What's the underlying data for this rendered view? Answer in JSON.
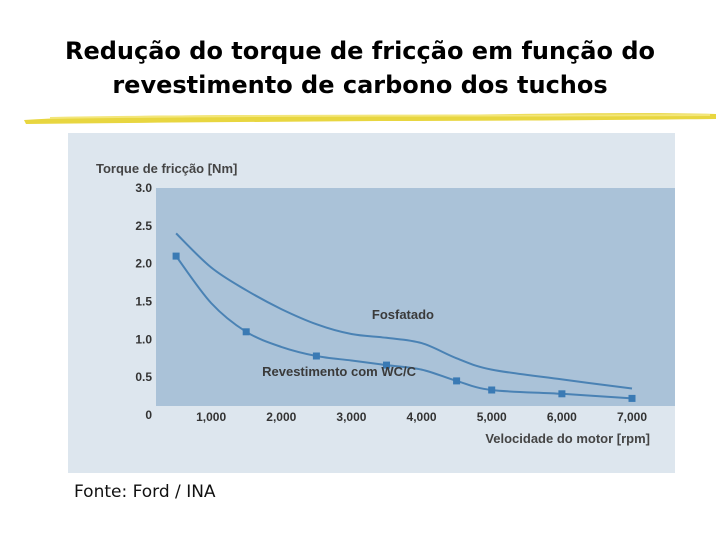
{
  "slide": {
    "title_line1": "Redução do torque de fricção em função do",
    "title_line2": "revestimento de carbono dos tuchos",
    "source": "Fonte: Ford / INA"
  },
  "colors": {
    "accent_underline": "#e8d640",
    "panel_background": "#dde6ee",
    "plot_area": "#aac2d8",
    "series_line": "#4a82b4",
    "marker": "#3a7ab4"
  },
  "chart_data": {
    "type": "line",
    "ylabel": "Torque de fricção [Nm]",
    "xlabel": "Velocidade do motor [rpm]",
    "xlim": [
      0,
      7000
    ],
    "ylim": [
      0,
      3.0
    ],
    "x_ticks": [
      1000,
      2000,
      3000,
      4000,
      5000,
      6000,
      7000
    ],
    "x_tick_labels": [
      "1,000",
      "2,000",
      "3,000",
      "4,000",
      "5,000",
      "6,000",
      "7,000"
    ],
    "y_ticks": [
      0,
      0.5,
      1.0,
      1.5,
      2.0,
      2.5,
      3.0
    ],
    "y_tick_labels": [
      "0",
      "0.5",
      "1.0",
      "1.5",
      "2.0",
      "2.5",
      "3.0"
    ],
    "grid": false,
    "series": [
      {
        "name": "Fosfatado",
        "markers": false,
        "x": [
          500,
          1000,
          1500,
          2000,
          2500,
          3000,
          3500,
          4000,
          4500,
          5000,
          6000,
          7000
        ],
        "y": [
          2.4,
          1.95,
          1.65,
          1.4,
          1.2,
          1.07,
          1.02,
          0.95,
          0.75,
          0.6,
          0.47,
          0.35
        ]
      },
      {
        "name": "Revestimento com WC/C",
        "markers": true,
        "x": [
          500,
          1000,
          1500,
          2000,
          2500,
          3000,
          3500,
          4000,
          4500,
          5000,
          6000,
          7000
        ],
        "y": [
          2.1,
          1.48,
          1.1,
          0.9,
          0.78,
          0.72,
          0.66,
          0.6,
          0.45,
          0.33,
          0.28,
          0.22
        ]
      }
    ]
  }
}
